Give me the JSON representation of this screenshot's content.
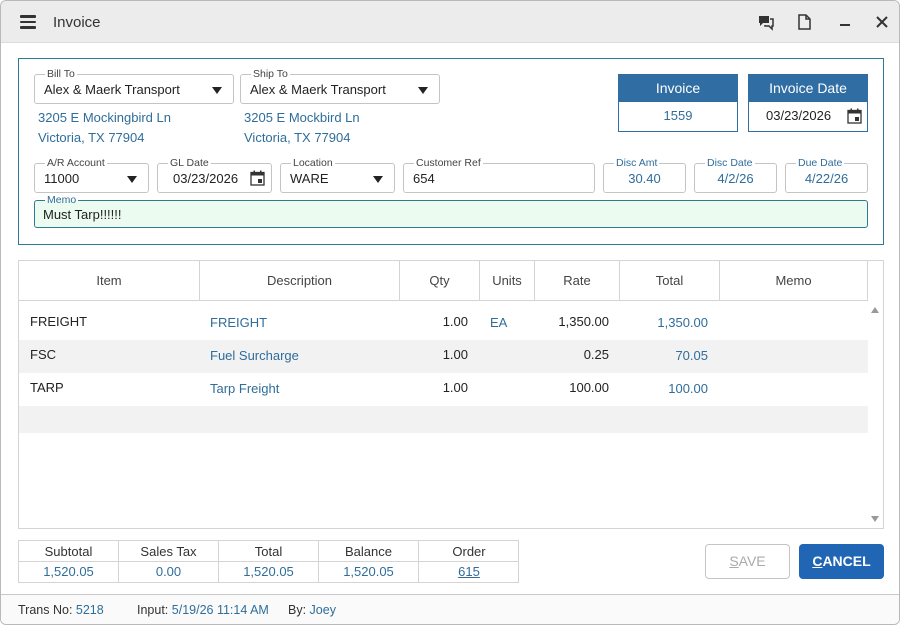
{
  "window": {
    "title": "Invoice"
  },
  "bill_to": {
    "label": "Bill To",
    "value": "Alex & Maerk Transport",
    "address_line1": "3205 E Mockingbird Ln",
    "address_line2": "Victoria, TX 77904"
  },
  "ship_to": {
    "label": "Ship To",
    "value": "Alex & Maerk Transport",
    "address_line1": "3205 E Mockbird Ln",
    "address_line2": "Victoria, TX 77904"
  },
  "invoice": {
    "label": "Invoice",
    "value": "1559"
  },
  "invoice_date": {
    "label": "Invoice Date",
    "value": "03/23/2026"
  },
  "ar_account": {
    "label": "A/R Account",
    "value": "11000"
  },
  "gl_date": {
    "label": "GL Date",
    "value": "03/23/2026"
  },
  "location": {
    "label": "Location",
    "value": "WARE"
  },
  "customer_ref": {
    "label": "Customer Ref",
    "value": "654"
  },
  "disc_amt": {
    "label": "Disc Amt",
    "value": "30.40"
  },
  "disc_date": {
    "label": "Disc Date",
    "value": "4/2/26"
  },
  "due_date": {
    "label": "Due Date",
    "value": "4/22/26"
  },
  "memo": {
    "label": "Memo",
    "value": "Must Tarp!!!!!!"
  },
  "grid": {
    "columns": [
      "Item",
      "Description",
      "Qty",
      "Units",
      "Rate",
      "Total",
      "Memo"
    ],
    "rows": [
      {
        "item": "FREIGHT",
        "description": "FREIGHT",
        "qty": "1.00",
        "units": "EA",
        "rate": "1,350.00",
        "total": "1,350.00",
        "memo": ""
      },
      {
        "item": "FSC",
        "description": "Fuel Surcharge",
        "qty": "1.00",
        "units": "",
        "rate": "0.25",
        "total": "70.05",
        "memo": ""
      },
      {
        "item": "TARP",
        "description": "Tarp Freight",
        "qty": "1.00",
        "units": "",
        "rate": "100.00",
        "total": "100.00",
        "memo": ""
      }
    ]
  },
  "totals": {
    "subtotal_label": "Subtotal",
    "subtotal": "1,520.05",
    "sales_tax_label": "Sales Tax",
    "sales_tax": "0.00",
    "total_label": "Total",
    "total": "1,520.05",
    "balance_label": "Balance",
    "balance": "1,520.05",
    "order_label": "Order",
    "order": "615"
  },
  "buttons": {
    "save": "SAVE",
    "cancel": "CANCEL"
  },
  "footer": {
    "trans_no_label": "Trans No:",
    "trans_no": "5218",
    "input_label": "Input:",
    "input": "5/19/26 11:14 AM",
    "by_label": "By:",
    "by": "Joey"
  },
  "icons": [
    "menu-icon",
    "chat-icon",
    "document-icon",
    "minimize-icon",
    "close-icon",
    "calendar-icon",
    "dropdown-arrow-icon",
    "scroll-up-icon",
    "scroll-down-icon"
  ],
  "colors": {
    "accent": "#2f6da3",
    "link": "#2f6d9a",
    "memo_bg": "#ecfbef",
    "cancel_bg": "#2166b5"
  }
}
